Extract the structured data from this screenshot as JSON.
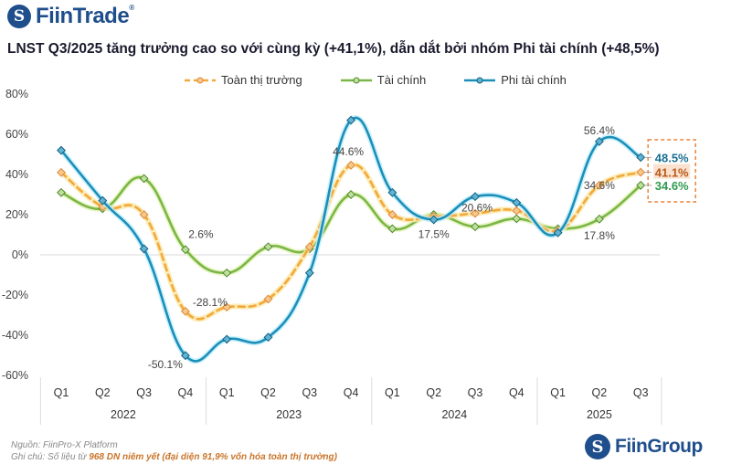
{
  "brand": {
    "top_logo": "FiinTrade",
    "top_logo_mark": "®",
    "bottom_logo": "FiinGroup",
    "logo_glyph": "S"
  },
  "footer": {
    "source": "Nguồn: FiinPro-X Platform",
    "note_prefix": "Ghi chú: Số liệu từ ",
    "note_highlight": "968 DN niêm yết (đại diện 91,9% vốn hóa toàn thị trường)"
  },
  "colors": {
    "market": "#f2a93b",
    "market_marker": "#e0893a",
    "financial": "#7ab648",
    "non_financial": "#1b8fb8",
    "highlight_box": "#e8843c",
    "title": "#1a1a2e"
  },
  "chart_data": {
    "type": "line",
    "title": "LNST Q3/2025 tăng trưởng cao so với cùng kỳ (+41,1%), dẫn dắt bởi nhóm Phi tài chính (+48,5%)",
    "xlabel": "",
    "ylabel": "",
    "ylim": [
      -60,
      80
    ],
    "yticks": [
      80,
      60,
      40,
      20,
      0,
      -20,
      -40,
      -60
    ],
    "ytick_labels": [
      "80%",
      "60%",
      "40%",
      "20%",
      "0%",
      "-20%",
      "-40%",
      "-60%"
    ],
    "grid": false,
    "legend_position": "top-center",
    "categories": [
      "Q1",
      "Q2",
      "Q3",
      "Q4",
      "Q1",
      "Q2",
      "Q3",
      "Q4",
      "Q1",
      "Q2",
      "Q3",
      "Q4",
      "Q1",
      "Q2",
      "Q3"
    ],
    "year_groups": [
      {
        "label": "2022",
        "count": 4
      },
      {
        "label": "2023",
        "count": 4
      },
      {
        "label": "2024",
        "count": 4
      },
      {
        "label": "2025",
        "count": 3
      }
    ],
    "series": [
      {
        "key": "market",
        "name": "Toàn thị trường",
        "style": "dashed",
        "values": [
          41,
          24,
          20,
          -28.1,
          -26,
          -22,
          4,
          44.6,
          20,
          19,
          20.6,
          22,
          12,
          34.6,
          41.1
        ],
        "labels": {
          "3": "-28.1%",
          "7": "44.6%",
          "10": "20.6%",
          "13": "34.6%"
        }
      },
      {
        "key": "financial",
        "name": "Tài chính",
        "style": "solid",
        "values": [
          31,
          23,
          38,
          2.6,
          -9,
          4,
          3,
          30,
          13,
          20,
          14,
          18,
          13,
          17.8,
          34.6
        ],
        "labels": {
          "3": "2.6%",
          "13": "17.8%"
        }
      },
      {
        "key": "non_financial",
        "name": "Phi tài chính",
        "style": "solid",
        "values": [
          52,
          27,
          3,
          -50.1,
          -42,
          -41,
          -9,
          67,
          31,
          17.5,
          29,
          26,
          11,
          56.4,
          48.5
        ],
        "labels": {
          "3": "-50.1%",
          "9": "17.5%",
          "13": "56.4%"
        }
      }
    ],
    "highlight": {
      "category_index": 14,
      "labels": [
        {
          "series": "non_financial",
          "text": "48.5%"
        },
        {
          "series": "market",
          "text": "41.1%"
        },
        {
          "series": "financial",
          "text": "34.6%"
        }
      ]
    }
  }
}
